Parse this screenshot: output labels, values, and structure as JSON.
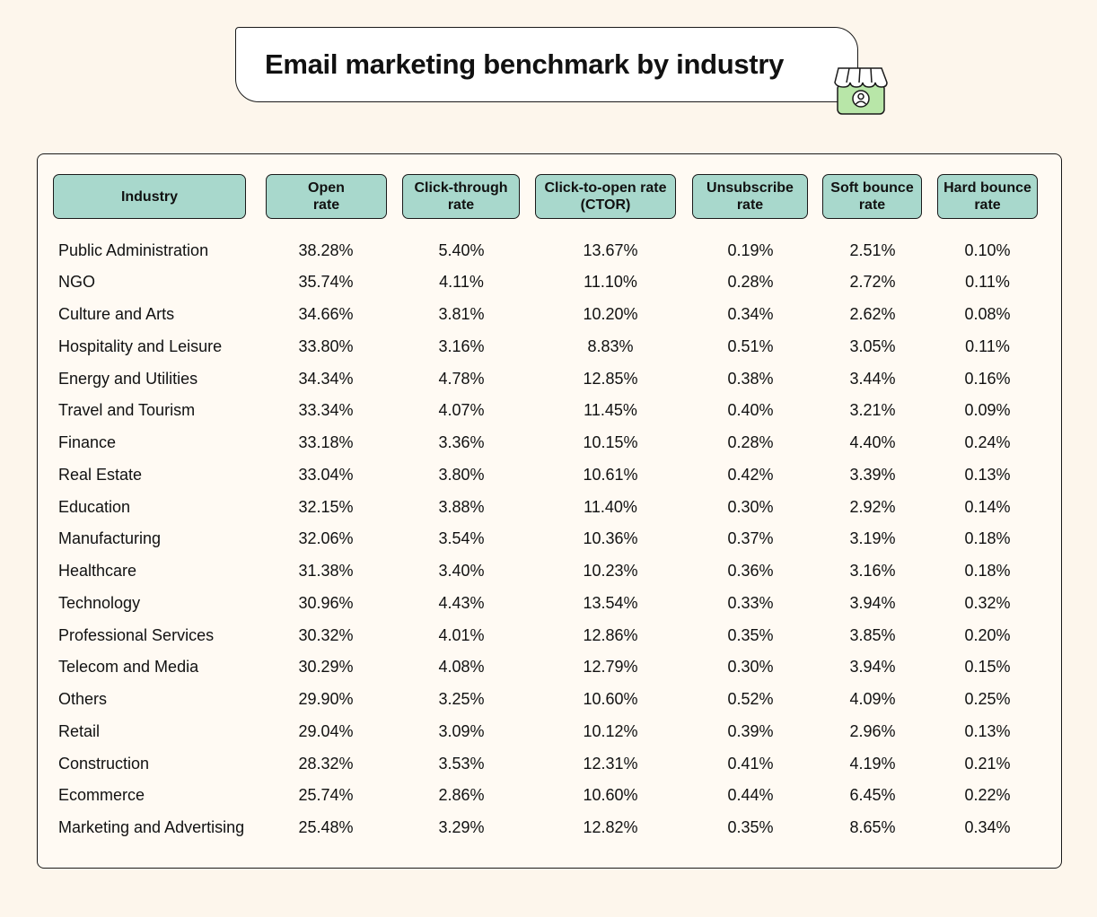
{
  "title": "Email marketing benchmark by industry",
  "icons": {
    "store": "storefront-user-icon"
  },
  "colors": {
    "background": "#fdf6ec",
    "header_fill": "#a8d8cc",
    "border": "#1a1a1a",
    "icon_fill": "#b8e6a8"
  },
  "chart_data": {
    "type": "table",
    "columns": [
      "Industry",
      "Open\nrate",
      "Click-through\nrate",
      "Click-to-open rate\n(CTOR)",
      "Unsubscribe\nrate",
      "Soft bounce\nrate",
      "Hard bounce\nrate"
    ],
    "rows": [
      [
        "Public Administration",
        "38.28%",
        "5.40%",
        "13.67%",
        "0.19%",
        "2.51%",
        "0.10%"
      ],
      [
        "NGO",
        "35.74%",
        "4.11%",
        "11.10%",
        "0.28%",
        "2.72%",
        "0.11%"
      ],
      [
        "Culture and Arts",
        "34.66%",
        "3.81%",
        "10.20%",
        "0.34%",
        "2.62%",
        "0.08%"
      ],
      [
        "Hospitality and Leisure",
        "33.80%",
        "3.16%",
        "8.83%",
        "0.51%",
        "3.05%",
        "0.11%"
      ],
      [
        "Energy and Utilities",
        "34.34%",
        "4.78%",
        "12.85%",
        "0.38%",
        "3.44%",
        "0.16%"
      ],
      [
        "Travel and Tourism",
        "33.34%",
        "4.07%",
        "11.45%",
        "0.40%",
        "3.21%",
        "0.09%"
      ],
      [
        "Finance",
        "33.18%",
        "3.36%",
        "10.15%",
        "0.28%",
        "4.40%",
        "0.24%"
      ],
      [
        "Real Estate",
        "33.04%",
        "3.80%",
        "10.61%",
        "0.42%",
        "3.39%",
        "0.13%"
      ],
      [
        "Education",
        "32.15%",
        "3.88%",
        "11.40%",
        "0.30%",
        "2.92%",
        "0.14%"
      ],
      [
        "Manufacturing",
        "32.06%",
        "3.54%",
        "10.36%",
        "0.37%",
        "3.19%",
        "0.18%"
      ],
      [
        "Healthcare",
        "31.38%",
        "3.40%",
        "10.23%",
        "0.36%",
        "3.16%",
        "0.18%"
      ],
      [
        "Technology",
        "30.96%",
        "4.43%",
        "13.54%",
        "0.33%",
        "3.94%",
        "0.32%"
      ],
      [
        "Professional Services",
        "30.32%",
        "4.01%",
        "12.86%",
        "0.35%",
        "3.85%",
        "0.20%"
      ],
      [
        "Telecom and Media",
        "30.29%",
        "4.08%",
        "12.79%",
        "0.30%",
        "3.94%",
        "0.15%"
      ],
      [
        "Others",
        "29.90%",
        "3.25%",
        "10.60%",
        "0.52%",
        "4.09%",
        "0.25%"
      ],
      [
        "Retail",
        "29.04%",
        "3.09%",
        "10.12%",
        "0.39%",
        "2.96%",
        "0.13%"
      ],
      [
        "Construction",
        "28.32%",
        "3.53%",
        "12.31%",
        "0.41%",
        "4.19%",
        "0.21%"
      ],
      [
        "Ecommerce",
        "25.74%",
        "2.86%",
        "10.60%",
        "0.44%",
        "6.45%",
        "0.22%"
      ],
      [
        "Marketing and Advertising",
        "25.48%",
        "3.29%",
        "12.82%",
        "0.35%",
        "8.65%",
        "0.34%"
      ]
    ]
  }
}
